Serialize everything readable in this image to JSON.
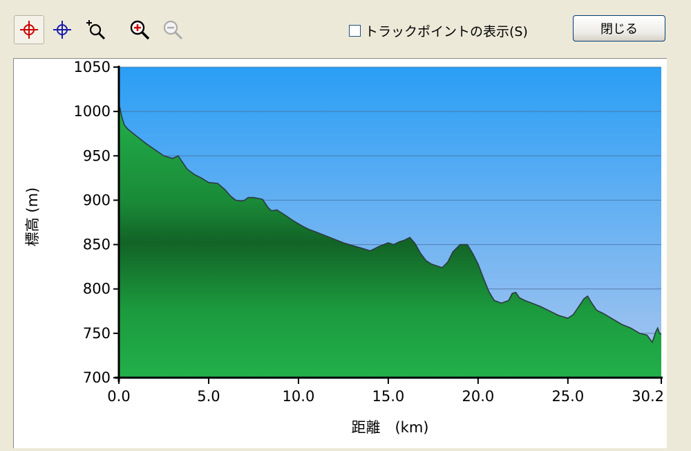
{
  "toolbar": {
    "tools": [
      {
        "name": "crosshair-red-icon",
        "active": true
      },
      {
        "name": "crosshair-blue-icon",
        "active": false
      },
      {
        "name": "zoom-area-icon",
        "active": false
      },
      {
        "name": "zoom-in-icon",
        "active": false
      },
      {
        "name": "zoom-out-icon",
        "active": false
      }
    ],
    "show_trackpoints_label": "トラックポイントの表示(S)",
    "show_trackpoints_checked": false,
    "close_label": "閉じる"
  },
  "chart_data": {
    "type": "area",
    "xlabel": "距離　(km)",
    "ylabel": "標高 (m)",
    "xlim": [
      0,
      30.2
    ],
    "ylim": [
      700,
      1050
    ],
    "x_ticks": [
      0,
      5,
      10,
      15,
      20,
      25,
      30.2
    ],
    "x_tick_labels": [
      "0.0",
      "5.0",
      "10.0",
      "15.0",
      "20.0",
      "25.0",
      "30.2"
    ],
    "y_ticks": [
      700,
      750,
      800,
      850,
      900,
      950,
      1000,
      1050
    ],
    "y_tick_labels": [
      "700",
      "750",
      "800",
      "850",
      "900",
      "950",
      "1000",
      "1050"
    ],
    "grid": true,
    "colors": {
      "sky_top": "#2a9ef5",
      "sky_bottom": "#a8c4ee",
      "fill_light": "#22b04a",
      "fill_dark": "#126326",
      "outline": "#2c3a40"
    },
    "series": [
      {
        "x": [
          0,
          0.05,
          0.15,
          0.3,
          0.5,
          1.0,
          1.5,
          2.0,
          2.5,
          3.0,
          3.3,
          3.5,
          3.8,
          4.2,
          4.6,
          5.0,
          5.5,
          5.9,
          6.2,
          6.5,
          6.8,
          7.0,
          7.2,
          7.5,
          8.0,
          8.3,
          8.5,
          8.8,
          9.2,
          9.7,
          10.2,
          10.6,
          11.0,
          11.5,
          12.0,
          12.5,
          13.0,
          13.5,
          14.0,
          14.5,
          15.0,
          15.3,
          15.6,
          15.9,
          16.2,
          16.5,
          16.8,
          17.1,
          17.4,
          17.7,
          18.0,
          18.3,
          18.6,
          19.0,
          19.4,
          19.7,
          20.0,
          20.3,
          20.6,
          20.9,
          21.3,
          21.7,
          21.9,
          22.1,
          22.3,
          22.6,
          23.0,
          23.5,
          24.0,
          24.5,
          25.0,
          25.3,
          25.6,
          25.9,
          26.1,
          26.3,
          26.6,
          27.0,
          27.5,
          28.0,
          28.5,
          29.0,
          29.4,
          29.7,
          29.9,
          30.0,
          30.1,
          30.2
        ],
        "y": [
          1000,
          1005,
          995,
          985,
          980,
          972,
          964,
          957,
          950,
          947,
          950,
          944,
          935,
          929,
          925,
          920,
          919,
          912,
          905,
          900,
          899,
          900,
          903,
          903,
          901,
          892,
          888,
          889,
          884,
          877,
          871,
          867,
          864,
          860,
          856,
          852,
          849,
          846,
          843,
          848,
          852,
          850,
          853,
          855,
          858,
          851,
          840,
          832,
          828,
          826,
          824,
          830,
          842,
          850,
          850,
          840,
          828,
          812,
          797,
          787,
          784,
          787,
          795,
          796,
          790,
          787,
          784,
          780,
          775,
          770,
          767,
          771,
          780,
          789,
          792,
          785,
          776,
          772,
          766,
          760,
          756,
          750,
          748,
          740,
          752,
          756,
          750,
          749
        ]
      }
    ]
  }
}
